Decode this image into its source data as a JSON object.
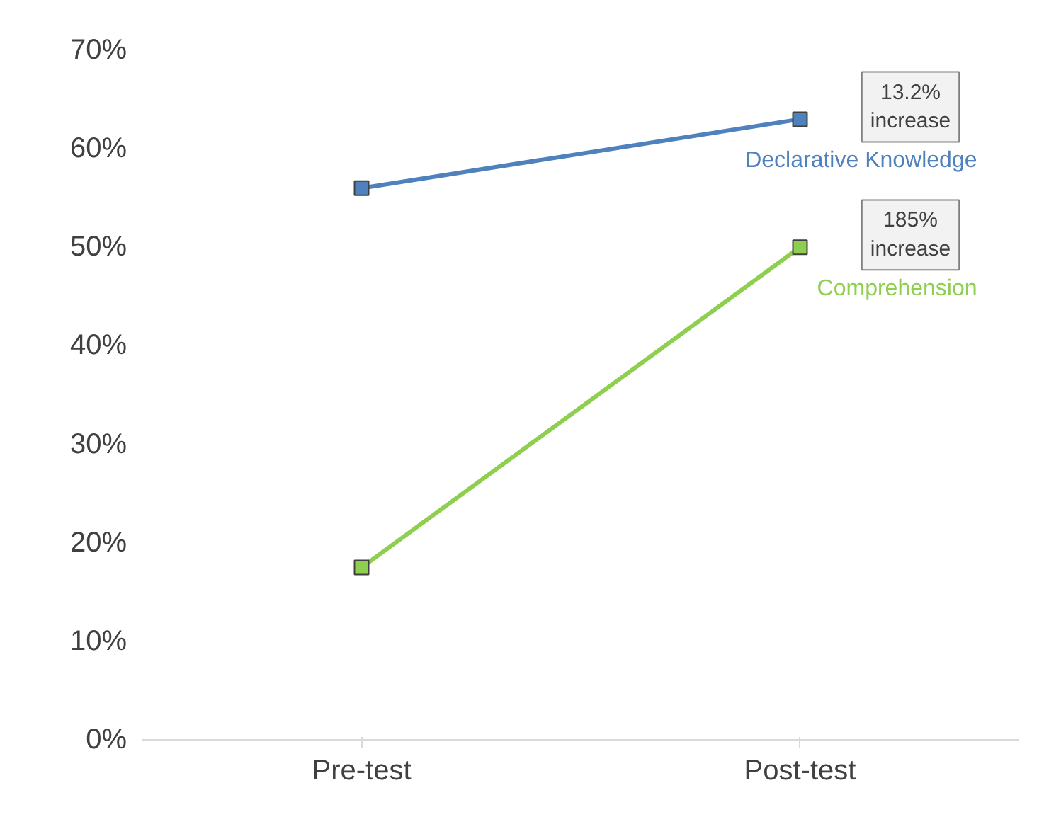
{
  "chart_data": {
    "type": "line",
    "categories": [
      "Pre-test",
      "Post-test"
    ],
    "series": [
      {
        "name": "Declarative Knowledge",
        "color": "#4f81bd",
        "values": [
          56,
          63
        ]
      },
      {
        "name": "Comprehension",
        "color": "#8fcf4f",
        "values": [
          17.5,
          50
        ]
      }
    ],
    "ylim": [
      0,
      70
    ],
    "yticks": [
      {
        "value": 0,
        "label": "0%"
      },
      {
        "value": 10,
        "label": "10%"
      },
      {
        "value": 20,
        "label": "20%"
      },
      {
        "value": 30,
        "label": "30%"
      },
      {
        "value": 40,
        "label": "40%"
      },
      {
        "value": 50,
        "label": "50%"
      },
      {
        "value": 60,
        "label": "60%"
      },
      {
        "value": 70,
        "label": "70%"
      }
    ],
    "annotations": [
      "13.2%\nincrease",
      "185%\nincrease"
    ],
    "grid": false,
    "marker": "square",
    "line_style": "solid"
  }
}
